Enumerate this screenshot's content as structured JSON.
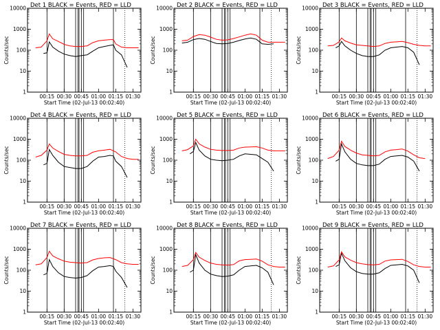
{
  "page": {
    "background": "#ffffff"
  },
  "colors": {
    "events": "#000000",
    "lld": "#ff0000"
  },
  "shared": {
    "xlabel": "Start Time (02-Jul-13 00:02:40)",
    "ylabel": "Counts/sec",
    "y_scale": "log",
    "ylim": [
      1,
      10000
    ],
    "y_ticks": [
      "1",
      "10",
      "100",
      "1000",
      "10000"
    ],
    "x_ticks": [
      "00:15",
      "00:30",
      "00:45",
      "01:00",
      "01:15",
      "01:30"
    ]
  },
  "chart_data": [
    {
      "type": "line",
      "title": "Det 1 BLACK = Events, RED = LLD",
      "series": [
        {
          "name": "Events",
          "x": [
            "00:12",
            "00:15",
            "00:17",
            "00:20",
            "00:25",
            "00:30",
            "00:35",
            "00:40",
            "00:45",
            "00:50",
            "00:55",
            "01:00",
            "01:05",
            "01:10",
            "01:13",
            "01:15",
            "01:20",
            "01:25"
          ],
          "y": [
            70,
            75,
            250,
            140,
            90,
            65,
            55,
            50,
            55,
            60,
            90,
            130,
            150,
            170,
            180,
            100,
            60,
            15
          ]
        },
        {
          "name": "LLD",
          "x": [
            "00:05",
            "00:10",
            "00:15",
            "00:17",
            "00:20",
            "00:25",
            "00:30",
            "00:35",
            "00:40",
            "00:45",
            "00:50",
            "00:55",
            "01:00",
            "01:05",
            "01:10",
            "01:13",
            "01:15",
            "01:20",
            "01:25",
            "01:30",
            "01:35"
          ],
          "y": [
            130,
            140,
            280,
            600,
            350,
            260,
            190,
            160,
            150,
            150,
            160,
            230,
            280,
            300,
            320,
            320,
            200,
            140,
            130,
            130,
            130
          ]
        }
      ]
    },
    {
      "type": "line",
      "title": "Det 2 BLACK = Events, RED = LLD",
      "series": [
        {
          "name": "Events",
          "x": [
            "00:05",
            "00:10",
            "00:15",
            "00:20",
            "00:25",
            "00:30",
            "00:35",
            "00:40",
            "00:45",
            "00:50",
            "00:55",
            "01:00",
            "01:05",
            "01:10",
            "01:15",
            "01:20",
            "01:25"
          ],
          "y": [
            220,
            240,
            320,
            360,
            330,
            260,
            210,
            200,
            210,
            240,
            290,
            340,
            380,
            330,
            200,
            190,
            200
          ]
        },
        {
          "name": "LLD",
          "x": [
            "00:05",
            "00:10",
            "00:15",
            "00:20",
            "00:25",
            "00:30",
            "00:35",
            "00:40",
            "00:45",
            "00:50",
            "00:55",
            "01:00",
            "01:05",
            "01:10",
            "01:15",
            "01:20",
            "01:25",
            "01:30",
            "01:35"
          ],
          "y": [
            280,
            300,
            450,
            550,
            520,
            420,
            330,
            300,
            310,
            360,
            430,
            520,
            600,
            520,
            300,
            240,
            240,
            240,
            240
          ]
        }
      ]
    },
    {
      "type": "line",
      "title": "Det 3 BLACK = Events, RED = LLD",
      "series": [
        {
          "name": "Events",
          "x": [
            "00:12",
            "00:15",
            "00:17",
            "00:20",
            "00:25",
            "00:30",
            "00:35",
            "00:40",
            "00:45",
            "00:50",
            "00:55",
            "01:00",
            "01:05",
            "01:10",
            "01:15",
            "01:20",
            "01:25"
          ],
          "y": [
            130,
            160,
            260,
            160,
            100,
            70,
            55,
            50,
            50,
            60,
            100,
            130,
            140,
            150,
            130,
            80,
            20
          ]
        },
        {
          "name": "LLD",
          "x": [
            "00:05",
            "00:10",
            "00:15",
            "00:17",
            "00:20",
            "00:25",
            "00:30",
            "00:35",
            "00:40",
            "00:45",
            "00:50",
            "00:55",
            "01:00",
            "01:05",
            "01:10",
            "01:15",
            "01:20",
            "01:25",
            "01:30",
            "01:35"
          ],
          "y": [
            160,
            170,
            250,
            380,
            280,
            220,
            180,
            170,
            160,
            150,
            160,
            210,
            240,
            250,
            260,
            230,
            190,
            170,
            160,
            160
          ]
        }
      ]
    },
    {
      "type": "line",
      "title": "Det 4 BLACK = Events, RED = LLD",
      "series": [
        {
          "name": "Events",
          "x": [
            "00:12",
            "00:15",
            "00:17",
            "00:20",
            "00:25",
            "00:30",
            "00:35",
            "00:40",
            "00:45",
            "00:50",
            "00:55",
            "01:00",
            "01:05",
            "01:10",
            "01:13",
            "01:15",
            "01:20",
            "01:25"
          ],
          "y": [
            60,
            70,
            320,
            170,
            80,
            50,
            45,
            40,
            40,
            50,
            90,
            140,
            150,
            170,
            160,
            90,
            50,
            15
          ]
        },
        {
          "name": "LLD",
          "x": [
            "00:05",
            "00:10",
            "00:15",
            "00:17",
            "00:20",
            "00:25",
            "00:30",
            "00:35",
            "00:40",
            "00:45",
            "00:50",
            "00:55",
            "01:00",
            "01:05",
            "01:10",
            "01:15",
            "01:20",
            "01:25",
            "01:30",
            "01:35"
          ],
          "y": [
            140,
            170,
            300,
            600,
            380,
            260,
            190,
            170,
            160,
            160,
            170,
            240,
            280,
            300,
            330,
            250,
            150,
            120,
            110,
            110
          ]
        }
      ]
    },
    {
      "type": "line",
      "title": "Det 5 BLACK = Events, RED = LLD",
      "series": [
        {
          "name": "Events",
          "x": [
            "00:12",
            "00:15",
            "00:17",
            "00:20",
            "00:25",
            "00:30",
            "00:35",
            "00:40",
            "00:45",
            "00:50",
            "00:55",
            "01:00",
            "01:05",
            "01:10",
            "01:15",
            "01:20",
            "01:25"
          ],
          "y": [
            200,
            260,
            700,
            300,
            160,
            110,
            100,
            95,
            100,
            110,
            160,
            200,
            190,
            180,
            120,
            80,
            30
          ]
        },
        {
          "name": "LLD",
          "x": [
            "00:05",
            "00:10",
            "00:15",
            "00:17",
            "00:20",
            "00:25",
            "00:30",
            "00:35",
            "00:40",
            "00:45",
            "00:50",
            "00:55",
            "01:00",
            "01:05",
            "01:10",
            "01:15",
            "01:20",
            "01:25",
            "01:30",
            "01:35"
          ],
          "y": [
            280,
            320,
            480,
            1000,
            600,
            420,
            330,
            300,
            290,
            290,
            300,
            380,
            420,
            430,
            440,
            380,
            300,
            280,
            280,
            280
          ]
        }
      ]
    },
    {
      "type": "line",
      "title": "Det 6 BLACK = Events, RED = LLD",
      "series": [
        {
          "name": "Events",
          "x": [
            "00:12",
            "00:15",
            "00:17",
            "00:20",
            "00:25",
            "00:30",
            "00:35",
            "00:40",
            "00:45",
            "00:50",
            "00:55",
            "01:00",
            "01:05",
            "01:10",
            "01:15",
            "01:20",
            "01:25"
          ],
          "y": [
            90,
            110,
            600,
            250,
            110,
            70,
            60,
            55,
            55,
            65,
            110,
            150,
            160,
            170,
            140,
            90,
            30
          ]
        },
        {
          "name": "LLD",
          "x": [
            "00:05",
            "00:10",
            "00:15",
            "00:17",
            "00:20",
            "00:25",
            "00:30",
            "00:35",
            "00:40",
            "00:45",
            "00:50",
            "00:55",
            "01:00",
            "01:05",
            "01:10",
            "01:15",
            "01:20",
            "01:25",
            "01:30"
          ],
          "y": [
            120,
            150,
            300,
            800,
            450,
            300,
            220,
            180,
            170,
            160,
            170,
            250,
            300,
            320,
            340,
            270,
            180,
            130,
            120
          ]
        }
      ]
    },
    {
      "type": "line",
      "title": "Det 7 BLACK = Events, RED = LLD",
      "series": [
        {
          "name": "Events",
          "x": [
            "00:12",
            "00:15",
            "00:17",
            "00:20",
            "00:25",
            "00:30",
            "00:35",
            "00:40",
            "00:45",
            "00:50",
            "00:55",
            "01:00",
            "01:05",
            "01:10",
            "01:13",
            "01:15",
            "01:20",
            "01:25"
          ],
          "y": [
            60,
            70,
            320,
            150,
            75,
            50,
            45,
            42,
            45,
            55,
            95,
            140,
            150,
            165,
            150,
            90,
            45,
            15
          ]
        },
        {
          "name": "LLD",
          "x": [
            "00:05",
            "00:10",
            "00:15",
            "00:17",
            "00:20",
            "00:25",
            "00:30",
            "00:35",
            "00:40",
            "00:45",
            "00:50",
            "00:55",
            "01:00",
            "01:05",
            "01:10",
            "01:15",
            "01:20",
            "01:25",
            "01:30",
            "01:35"
          ],
          "y": [
            180,
            200,
            400,
            800,
            480,
            350,
            270,
            240,
            230,
            220,
            230,
            310,
            360,
            390,
            400,
            320,
            230,
            200,
            190,
            190
          ]
        }
      ]
    },
    {
      "type": "line",
      "title": "Det 8 BLACK = Events, RED = LLD",
      "series": [
        {
          "name": "Events",
          "x": [
            "00:12",
            "00:15",
            "00:17",
            "00:20",
            "00:25",
            "00:30",
            "00:35",
            "00:40",
            "00:45",
            "00:50",
            "00:55",
            "01:00",
            "01:05",
            "01:10",
            "01:15",
            "01:20",
            "01:25"
          ],
          "y": [
            80,
            100,
            550,
            220,
            100,
            65,
            55,
            50,
            52,
            60,
            100,
            150,
            160,
            170,
            130,
            80,
            20
          ]
        },
        {
          "name": "LLD",
          "x": [
            "00:05",
            "00:10",
            "00:15",
            "00:17",
            "00:20",
            "00:25",
            "00:30",
            "00:35",
            "00:40",
            "00:45",
            "00:50",
            "00:55",
            "01:00",
            "01:05",
            "01:10",
            "01:15",
            "01:20",
            "01:25",
            "01:30",
            "01:35"
          ],
          "y": [
            150,
            170,
            320,
            700,
            420,
            290,
            220,
            190,
            180,
            175,
            185,
            280,
            320,
            330,
            340,
            270,
            180,
            150,
            140,
            140
          ]
        }
      ]
    },
    {
      "type": "line",
      "title": "Det 9 BLACK = Events, RED = LLD",
      "series": [
        {
          "name": "Events",
          "x": [
            "00:12",
            "00:15",
            "00:17",
            "00:20",
            "00:25",
            "00:30",
            "00:35",
            "00:40",
            "00:45",
            "00:50",
            "00:55",
            "01:00",
            "01:05",
            "01:10",
            "01:15",
            "01:20",
            "01:25"
          ],
          "y": [
            150,
            180,
            650,
            280,
            130,
            85,
            70,
            65,
            65,
            75,
            120,
            170,
            180,
            190,
            160,
            100,
            25
          ]
        },
        {
          "name": "LLD",
          "x": [
            "00:05",
            "00:10",
            "00:15",
            "00:17",
            "00:20",
            "00:25",
            "00:30",
            "00:35",
            "00:40",
            "00:45",
            "00:50",
            "00:55",
            "01:00",
            "01:05",
            "01:10",
            "01:15",
            "01:20",
            "01:25",
            "01:30",
            "01:35"
          ],
          "y": [
            140,
            160,
            310,
            750,
            430,
            300,
            230,
            200,
            185,
            180,
            190,
            270,
            310,
            320,
            330,
            260,
            180,
            150,
            140,
            140
          ]
        }
      ]
    }
  ],
  "markers": {
    "solid_times": [
      "00:15",
      "00:30",
      "00:40",
      "00:42",
      "00:43",
      "00:45",
      "00:47",
      "01:13"
    ],
    "dotted_times": [
      "01:23",
      "01:37"
    ]
  }
}
